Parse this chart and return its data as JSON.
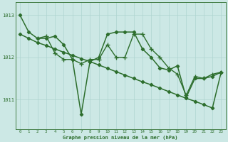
{
  "xlabel": "Graphe pression niveau de la mer (hPa)",
  "xlim": [
    -0.5,
    23.5
  ],
  "ylim": [
    1010.3,
    1013.3
  ],
  "yticks": [
    1011,
    1012,
    1013
  ],
  "xticks": [
    0,
    1,
    2,
    3,
    4,
    5,
    6,
    7,
    8,
    9,
    10,
    11,
    12,
    13,
    14,
    15,
    16,
    17,
    18,
    19,
    20,
    21,
    22,
    23
  ],
  "bg_color": "#cce8e5",
  "line_color": "#2d6e2d",
  "grid_color": "#afd4d0",
  "series": [
    {
      "x": [
        0,
        1,
        2,
        3,
        4,
        5,
        6,
        7,
        8,
        9,
        10,
        11,
        12,
        13,
        14,
        15,
        16,
        17,
        18,
        19,
        20,
        21,
        22,
        23
      ],
      "y": [
        1013.0,
        1012.6,
        1012.45,
        1012.45,
        1012.5,
        1012.3,
        1011.95,
        1010.65,
        1011.9,
        1012.0,
        1012.55,
        1012.6,
        1012.6,
        1012.6,
        1012.2,
        1012.0,
        1011.75,
        1011.7,
        1011.8,
        1011.05,
        1011.5,
        1011.5,
        1011.55,
        1011.65
      ],
      "marker": "D",
      "markersize": 2.2,
      "linewidth": 1.1
    },
    {
      "x": [
        0,
        1,
        2,
        3,
        4,
        5,
        6,
        7,
        8,
        9,
        10,
        11,
        12,
        13,
        14,
        15,
        16,
        17,
        18,
        19,
        20,
        21,
        22,
        23
      ],
      "y": [
        1012.55,
        1012.45,
        1012.35,
        1012.28,
        1012.2,
        1012.12,
        1012.05,
        1011.97,
        1011.9,
        1011.82,
        1011.74,
        1011.66,
        1011.58,
        1011.5,
        1011.42,
        1011.35,
        1011.27,
        1011.19,
        1011.11,
        1011.03,
        1010.96,
        1010.88,
        1010.8,
        1011.65
      ],
      "marker": "D",
      "markersize": 2.2,
      "linewidth": 1.1
    },
    {
      "x": [
        2,
        3,
        4,
        5,
        6,
        7,
        8,
        9,
        10,
        11,
        12,
        13,
        14,
        15,
        16,
        17,
        18,
        19,
        20,
        21,
        22,
        23
      ],
      "y": [
        1012.45,
        1012.5,
        1012.1,
        1011.95,
        1011.95,
        1011.85,
        1011.95,
        1011.95,
        1012.3,
        1012.0,
        1012.0,
        1012.55,
        1012.55,
        1012.2,
        1012.0,
        1011.75,
        1011.6,
        1011.1,
        1011.55,
        1011.5,
        1011.6,
        1011.65
      ],
      "marker": "+",
      "markersize": 4,
      "linewidth": 1.0
    }
  ]
}
